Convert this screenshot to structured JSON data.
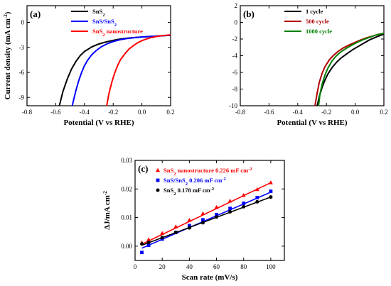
{
  "chart_data": [
    {
      "panel": "(a)",
      "type": "line",
      "xlabel": "Potential (V vs RHE)",
      "ylabel": "Current density (mA cm",
      "ylabel_sup": "-2",
      "ylabel_close": ")",
      "xlim": [
        -0.8,
        0.2
      ],
      "ylim": [
        -10,
        2
      ],
      "xticks": [
        -0.8,
        -0.6,
        -0.4,
        -0.2,
        0.0,
        0.2
      ],
      "xtick_labels": [
        "-0.8",
        "-0.6",
        "-0.4",
        "-0.2",
        "0.0",
        "0.2"
      ],
      "yticks": [
        -9,
        -6,
        -3,
        0
      ],
      "ytick_labels": [
        "-9",
        "-6",
        "-3",
        "0"
      ],
      "legend_position": "top-right",
      "series": [
        {
          "name": "SnS",
          "name_sub": "2",
          "color": "#000000",
          "x": [
            -0.575,
            -0.55,
            -0.52,
            -0.49,
            -0.46,
            -0.43,
            -0.4,
            -0.35,
            -0.3,
            -0.25,
            -0.2,
            -0.15,
            -0.1,
            -0.05,
            0.0,
            0.05,
            0.1,
            0.15,
            0.2
          ],
          "y": [
            -10.0,
            -8.3,
            -6.8,
            -5.6,
            -4.7,
            -4.0,
            -3.5,
            -2.95,
            -2.6,
            -2.35,
            -2.15,
            -2.0,
            -1.9,
            -1.82,
            -1.75,
            -1.7,
            -1.65,
            -1.6,
            -1.55
          ]
        },
        {
          "name": "SnS/SnS",
          "name_sub": "2",
          "color": "#0000ff",
          "x": [
            -0.485,
            -0.46,
            -0.44,
            -0.42,
            -0.4,
            -0.38,
            -0.35,
            -0.32,
            -0.28,
            -0.24,
            -0.2,
            -0.15,
            -0.1,
            -0.05,
            0.0,
            0.05,
            0.1,
            0.15,
            0.2
          ],
          "y": [
            -10.0,
            -8.2,
            -7.0,
            -6.0,
            -5.2,
            -4.6,
            -3.9,
            -3.4,
            -2.9,
            -2.55,
            -2.3,
            -2.08,
            -1.93,
            -1.83,
            -1.75,
            -1.7,
            -1.65,
            -1.6,
            -1.55
          ]
        },
        {
          "name": "SnS",
          "name_sub": "2",
          "name_suffix": " nanostructure",
          "color": "#ff0000",
          "x": [
            -0.245,
            -0.23,
            -0.21,
            -0.19,
            -0.17,
            -0.15,
            -0.12,
            -0.09,
            -0.06,
            -0.03,
            0.0,
            0.03,
            0.06,
            0.1,
            0.14,
            0.2
          ],
          "y": [
            -10.0,
            -8.6,
            -7.2,
            -6.1,
            -5.2,
            -4.5,
            -3.8,
            -3.2,
            -2.8,
            -2.45,
            -2.2,
            -2.0,
            -1.85,
            -1.7,
            -1.6,
            -1.5
          ]
        }
      ]
    },
    {
      "panel": "(b)",
      "type": "line",
      "xlabel": "Potential (V vs RHE)",
      "xlim": [
        -0.8,
        0.2
      ],
      "ylim": [
        -10,
        2
      ],
      "xticks": [
        -0.8,
        -0.6,
        -0.4,
        -0.2,
        0.0,
        0.2
      ],
      "xtick_labels": [
        "-0.8",
        "-0.6",
        "-0.4",
        "-0.2",
        "0.0",
        "0.2"
      ],
      "yticks": [
        -10,
        -8,
        -6,
        -4,
        -2,
        0,
        2
      ],
      "ytick_labels": [
        "-10",
        "-8",
        "-6",
        "-4",
        "-2",
        "0",
        "2"
      ],
      "legend_position": "top-right",
      "series": [
        {
          "name": "1 cycle",
          "color": "#000000",
          "x": [
            -0.265,
            -0.25,
            -0.23,
            -0.21,
            -0.19,
            -0.16,
            -0.13,
            -0.1,
            -0.06,
            -0.02,
            0.02,
            0.06,
            0.1,
            0.14,
            0.2
          ],
          "y": [
            -10.0,
            -8.9,
            -7.8,
            -6.9,
            -6.2,
            -5.4,
            -4.8,
            -4.3,
            -3.8,
            -3.3,
            -2.9,
            -2.5,
            -2.1,
            -1.8,
            -1.4
          ]
        },
        {
          "name": "500 cycle",
          "color": "#b00000",
          "x": [
            -0.28,
            -0.265,
            -0.25,
            -0.23,
            -0.21,
            -0.18,
            -0.15,
            -0.12,
            -0.08,
            -0.04,
            0.0,
            0.04,
            0.08,
            0.12,
            0.16,
            0.2
          ],
          "y": [
            -10.0,
            -8.5,
            -7.2,
            -6.1,
            -5.3,
            -4.5,
            -3.95,
            -3.5,
            -3.05,
            -2.7,
            -2.4,
            -2.1,
            -1.85,
            -1.65,
            -1.45,
            -1.3
          ]
        },
        {
          "name": "1000 cycle",
          "color": "#008000",
          "x": [
            -0.255,
            -0.245,
            -0.23,
            -0.21,
            -0.19,
            -0.16,
            -0.13,
            -0.1,
            -0.06,
            -0.02,
            0.02,
            0.06,
            0.1,
            0.14,
            0.2
          ],
          "y": [
            -10.0,
            -8.6,
            -7.4,
            -6.3,
            -5.5,
            -4.6,
            -4.0,
            -3.55,
            -3.1,
            -2.7,
            -2.35,
            -2.05,
            -1.8,
            -1.55,
            -1.3
          ]
        }
      ]
    },
    {
      "panel": "(c)",
      "type": "scatter",
      "xlabel": "Scan rate (mV/s)",
      "ylabel": "ΔJ/mA cm",
      "ylabel_sup": "-2",
      "xlim": [
        0,
        110
      ],
      "ylim": [
        -0.005,
        0.03
      ],
      "xticks": [
        0,
        20,
        40,
        60,
        80,
        100
      ],
      "xtick_labels": [
        "0",
        "20",
        "40",
        "60",
        "80",
        "100"
      ],
      "yticks": [
        0.0,
        0.01,
        0.02,
        0.03
      ],
      "ytick_labels": [
        "0.00",
        "0.01",
        "0.02",
        "0.03"
      ],
      "legend_position": "top",
      "series": [
        {
          "name_prefix": "SnS",
          "name_sub": "2",
          "name": " nanostructure 0.226 mF cm",
          "name_sup": "-2",
          "color": "#ff0000",
          "marker": "triangle",
          "x": [
            5,
            10,
            20,
            30,
            40,
            50,
            60,
            70,
            80,
            90,
            100
          ],
          "y": [
            0.0012,
            0.0023,
            0.0045,
            0.0068,
            0.0091,
            0.0114,
            0.0136,
            0.0158,
            0.0178,
            0.0198,
            0.0222
          ],
          "fit": [
            [
              5,
              0.0007
            ],
            [
              100,
              0.0222
            ]
          ]
        },
        {
          "name_prefix": "SnS/SnS",
          "name_sub": "2",
          "name": " 0.206 mF cm",
          "name_sup": "-2",
          "color": "#0000ff",
          "marker": "square",
          "x": [
            5,
            10,
            20,
            30,
            40,
            50,
            60,
            70,
            80,
            90,
            100
          ],
          "y": [
            -0.0022,
            0.0003,
            0.0025,
            0.0048,
            0.0072,
            0.0092,
            0.011,
            0.0132,
            0.015,
            0.017,
            0.0192
          ],
          "fit": [
            [
              5,
              -0.0007
            ],
            [
              100,
              0.0189
            ]
          ]
        },
        {
          "name_prefix": "SnS",
          "name_sub": "2",
          "name": " 0.178 mF cm",
          "name_sup": "-2",
          "color": "#000000",
          "marker": "circle",
          "x": [
            5,
            10,
            20,
            30,
            40,
            50,
            60,
            70,
            80,
            90,
            100
          ],
          "y": [
            0.0008,
            0.0013,
            0.003,
            0.0048,
            0.0064,
            0.0082,
            0.0102,
            0.012,
            0.0138,
            0.0155,
            0.0172
          ],
          "fit": [
            [
              5,
              0.0003
            ],
            [
              100,
              0.0172
            ]
          ]
        }
      ]
    }
  ]
}
